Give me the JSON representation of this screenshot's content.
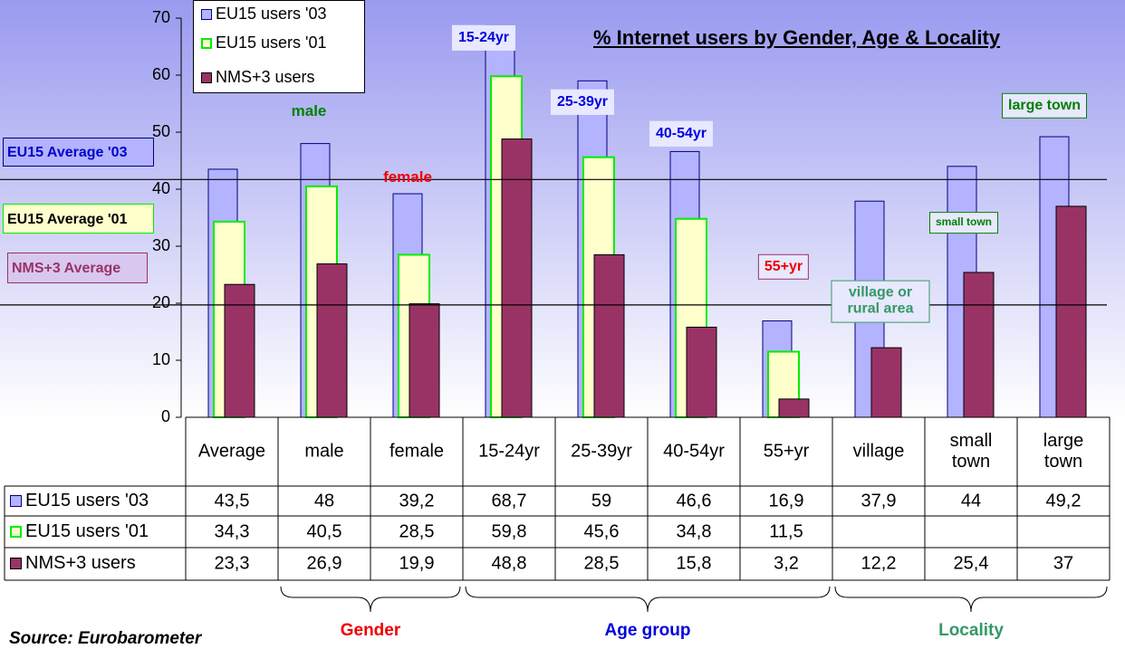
{
  "chart_data": {
    "type": "bar",
    "title": "% Internet users by Gender, Age & Locality",
    "categories": [
      "Average",
      "male",
      "female",
      "15-24yr",
      "25-39yr",
      "40-54yr",
      "55+yr",
      "village",
      "small town",
      "large town"
    ],
    "series": [
      {
        "name": "EU15 users '03",
        "color": "#b3b3ff",
        "edge_color": "#000080",
        "values": [
          43.5,
          48,
          39.2,
          68.7,
          59,
          46.6,
          16.9,
          37.9,
          44,
          49.2
        ],
        "value_labels": [
          "43,5",
          "48",
          "39,2",
          "68,7",
          "59",
          "46,6",
          "16,9",
          "37,9",
          "44",
          "49,2"
        ]
      },
      {
        "name": "EU15 users '01",
        "color": "#ffffcc",
        "edge_color": "#00ee00",
        "values": [
          34.3,
          40.5,
          28.5,
          59.8,
          45.6,
          34.8,
          11.5,
          null,
          null,
          null
        ],
        "value_labels": [
          "34,3",
          "40,5",
          "28,5",
          "59,8",
          "45,6",
          "34,8",
          "11,5",
          null,
          null,
          null
        ]
      },
      {
        "name": "NMS+3 users",
        "color": "#993366",
        "edge_color": "#000000",
        "values": [
          23.3,
          26.9,
          19.9,
          48.8,
          28.5,
          15.8,
          3.2,
          12.2,
          25.4,
          37
        ],
        "value_labels": [
          "23,3",
          "26,9",
          "19,9",
          "48,8",
          "28,5",
          "15,8",
          "3,2",
          "12,2",
          "25,4",
          "37"
        ]
      }
    ],
    "ylim": [
      0,
      70
    ],
    "yticks": [
      0,
      10,
      20,
      30,
      40,
      50,
      60,
      70
    ],
    "grid": false,
    "legend": "top-left",
    "reference_lines": [
      41.7,
      19.7
    ],
    "average_labels": [
      {
        "text": "EU15 Average '03",
        "color": "#0000cc",
        "fill": "#b3b3ff",
        "border": "#000080"
      },
      {
        "text": "EU15 Average '01",
        "color": "#000000",
        "fill": "#ffffcc",
        "border": "#00ee00"
      },
      {
        "text": "NMS+3 Average",
        "color": "#993366",
        "fill": "#d8c8f0",
        "border": "#993366"
      }
    ],
    "annotations": [
      {
        "text": "male",
        "color": "#008000"
      },
      {
        "text": "female",
        "color": "#ee0000"
      },
      {
        "text": "15-24yr",
        "color": "#0000dd"
      },
      {
        "text": "25-39yr",
        "color": "#0000dd"
      },
      {
        "text": "40-54yr",
        "color": "#0000dd"
      },
      {
        "text": "55+yr",
        "color": "#ee0000"
      },
      {
        "text": "village or rural area",
        "color": "#339966"
      },
      {
        "text": "small town",
        "color": "#008000"
      },
      {
        "text": "large town",
        "color": "#008000"
      }
    ],
    "groups": [
      {
        "label": "Gender",
        "color": "#ee0000"
      },
      {
        "label": "Age group",
        "color": "#0000dd"
      },
      {
        "label": "Locality",
        "color": "#339966"
      }
    ],
    "source": "Source: Eurobarometer"
  }
}
